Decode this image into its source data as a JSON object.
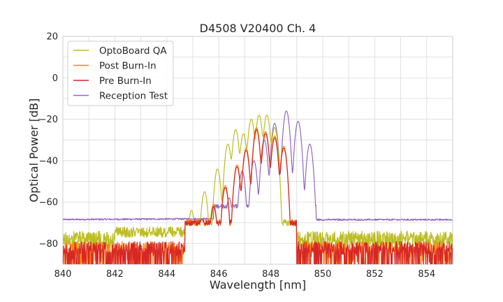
{
  "chart_data": {
    "type": "line",
    "title": "D4508 V20400 Ch. 4",
    "xlabel": "Wavelength [nm]",
    "ylabel": "Optical Power [dB]",
    "xlim": [
      840,
      855
    ],
    "ylim": [
      -90,
      20
    ],
    "xticks": [
      "840",
      "842",
      "844",
      "846",
      "848",
      "850",
      "852",
      "854"
    ],
    "yticks": [
      "20",
      "0",
      "−20",
      "−40",
      "−60",
      "−80"
    ],
    "grid": true,
    "legend_position": "top-left",
    "series": [
      {
        "name": "OptoBoard QA",
        "color": "#bcbd22",
        "noise_floor_dB": -80,
        "peaks_nm": [
          844.95,
          845.45,
          845.95,
          846.35,
          846.65,
          846.95,
          847.25,
          847.55,
          847.85,
          848.15
        ],
        "peaks_dB": [
          -64,
          -55,
          -44,
          -32,
          -25,
          -27,
          -20,
          -18,
          -18,
          -24
        ]
      },
      {
        "name": "Post Burn-In",
        "color": "#ff7f0e",
        "noise_floor_dB": -82,
        "peaks_nm": [
          845.35,
          845.8,
          846.25,
          846.7,
          847.05,
          847.45,
          847.8,
          848.15,
          848.5
        ],
        "peaks_dB": [
          -68,
          -61,
          -52,
          -42,
          -34,
          -24,
          -26,
          -28,
          -33
        ]
      },
      {
        "name": "Pre Burn-In",
        "color": "#d62728",
        "noise_floor_dB": -82,
        "peaks_nm": [
          845.35,
          845.8,
          846.25,
          846.7,
          847.05,
          847.45,
          847.8,
          848.15,
          848.5
        ],
        "peaks_dB": [
          -68,
          -62,
          -53,
          -43,
          -35,
          -25,
          -27,
          -29,
          -34
        ]
      },
      {
        "name": "Reception Test",
        "color": "#9467bd",
        "noise_floor_dB": -68,
        "peaks_nm": [
          845.9,
          846.4,
          846.9,
          847.35,
          847.75,
          848.15,
          848.6,
          849.05,
          849.5
        ],
        "peaks_dB": [
          -65,
          -58,
          -45,
          -40,
          -30,
          -22,
          -16,
          -21,
          -32
        ]
      }
    ]
  }
}
